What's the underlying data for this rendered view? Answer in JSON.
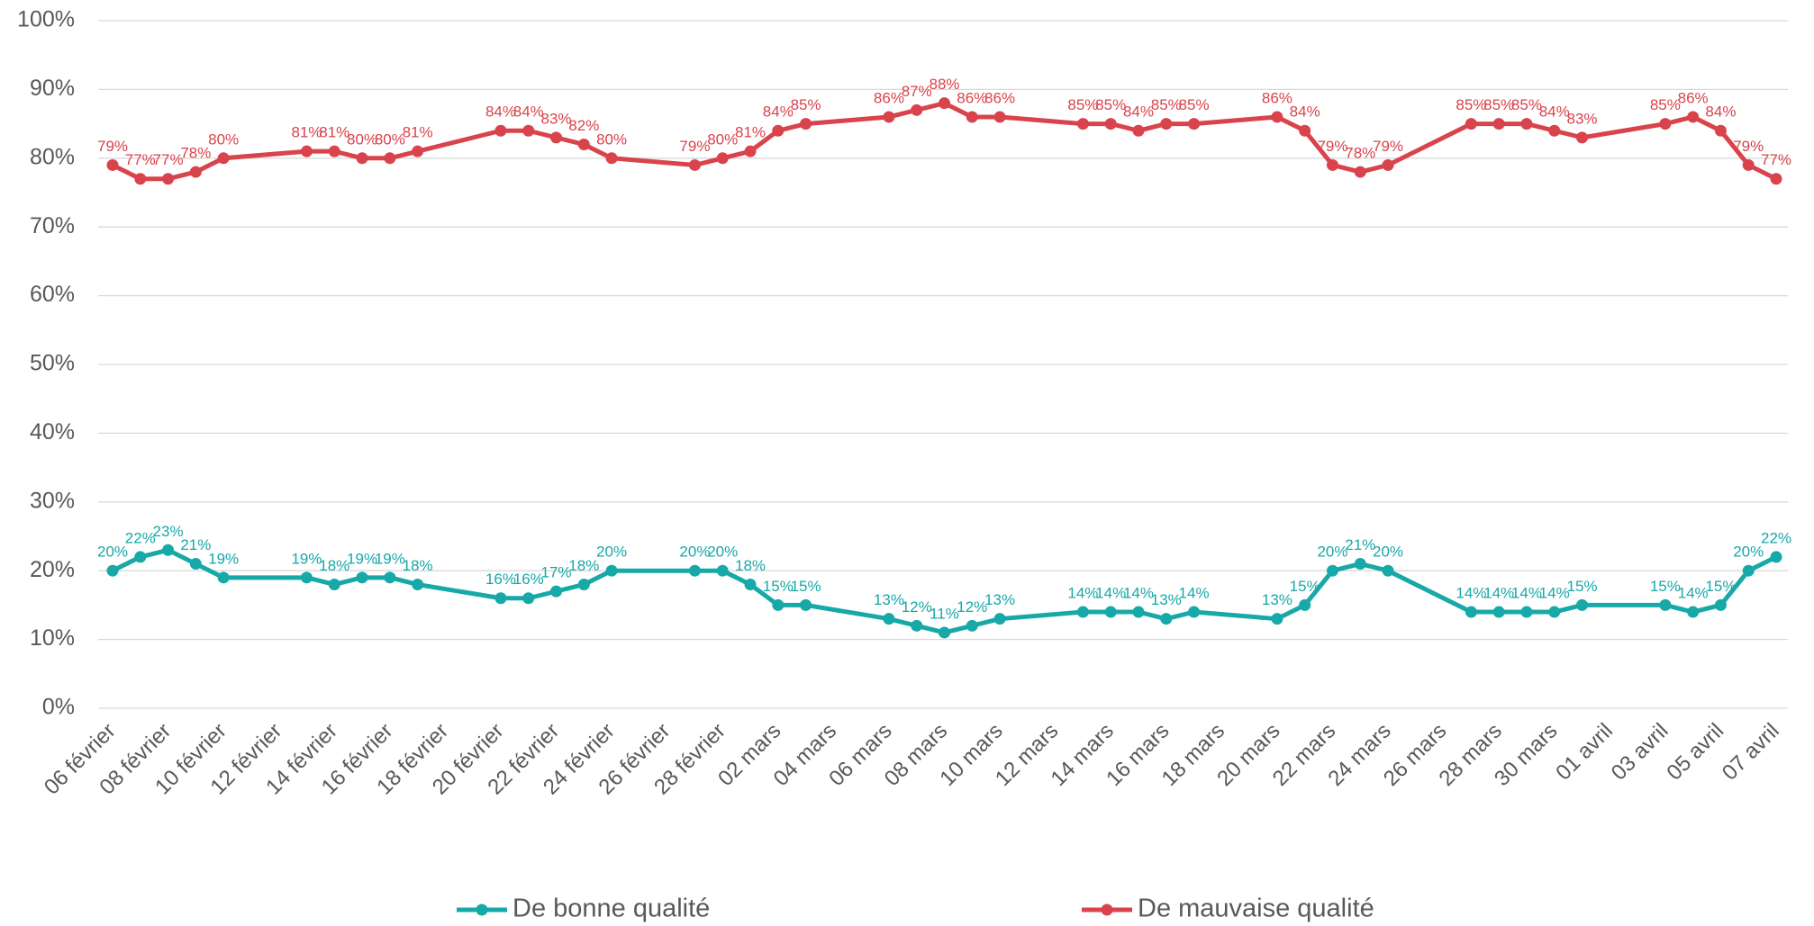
{
  "chart_data": {
    "type": "line",
    "categories": [
      "06 février",
      null,
      "08 février",
      null,
      "10 février",
      null,
      "12 février",
      null,
      "14 février",
      null,
      "16 février",
      null,
      "18 février",
      null,
      "20 février",
      null,
      "22 février",
      null,
      "24 février",
      null,
      "26 février",
      null,
      "28 février",
      null,
      "02 mars",
      null,
      "04 mars",
      null,
      "06 mars",
      null,
      "08 mars",
      null,
      "10 mars",
      null,
      "12 mars",
      null,
      "14 mars",
      null,
      "16 mars",
      null,
      "18 mars",
      null,
      "20 mars",
      null,
      "22 mars",
      null,
      "24 mars",
      null,
      "26 mars",
      null,
      "28 mars",
      null,
      "30 mars",
      null,
      "01 avril",
      null,
      "03 avril",
      null,
      "05 avril",
      null,
      "07 avril"
    ],
    "series": [
      {
        "name": "De bonne qualité",
        "color": "#17a8a8",
        "values": [
          20,
          22,
          23,
          21,
          19,
          null,
          null,
          19,
          18,
          19,
          19,
          18,
          null,
          null,
          16,
          16,
          17,
          18,
          20,
          null,
          null,
          20,
          20,
          18,
          15,
          15,
          null,
          null,
          13,
          12,
          11,
          12,
          13,
          null,
          null,
          14,
          14,
          14,
          13,
          14,
          null,
          null,
          13,
          15,
          20,
          21,
          20,
          null,
          null,
          14,
          14,
          14,
          14,
          15,
          null,
          null,
          15,
          14,
          15,
          20,
          22
        ],
        "value_labels": [
          "20%",
          "22%",
          "23%",
          "21%",
          "19%",
          null,
          null,
          "19%",
          "18%",
          "19%",
          "19%",
          "18%",
          null,
          null,
          "16%",
          "16%",
          "17%",
          "18%",
          "20%",
          null,
          null,
          "20%",
          "20%",
          "18%",
          "15%",
          "15%",
          null,
          null,
          "13%",
          "12%",
          "11%",
          "12%",
          "13%",
          null,
          null,
          "14%",
          "14%",
          "14%",
          "13%",
          "14%",
          null,
          null,
          "13%",
          "15%",
          "20%",
          "21%",
          "20%",
          null,
          null,
          "14%",
          "14%",
          "14%",
          "14%",
          "15%",
          null,
          null,
          "15%",
          "14%",
          "15%",
          "20%",
          "22%"
        ]
      },
      {
        "name": "De mauvaise qualité",
        "color": "#d9434b",
        "values": [
          79,
          77,
          77,
          78,
          80,
          null,
          null,
          81,
          81,
          80,
          80,
          81,
          null,
          null,
          84,
          84,
          83,
          82,
          80,
          null,
          null,
          79,
          80,
          81,
          84,
          85,
          null,
          null,
          86,
          87,
          88,
          86,
          86,
          null,
          null,
          85,
          85,
          84,
          85,
          85,
          null,
          null,
          86,
          84,
          79,
          78,
          79,
          null,
          null,
          85,
          85,
          85,
          84,
          83,
          null,
          null,
          85,
          86,
          84,
          79,
          77
        ],
        "value_labels": [
          "79%",
          "77%",
          "77%",
          "78%",
          "80%",
          null,
          null,
          "81%",
          "81%",
          "80%",
          "80%",
          "81%",
          null,
          null,
          "84%",
          "84%",
          "83%",
          "82%",
          "80%",
          null,
          null,
          "79%",
          "80%",
          "81%",
          "84%",
          "85%",
          null,
          null,
          "86%",
          "87%",
          "88%",
          "86%",
          "86%",
          null,
          null,
          "85%",
          "85%",
          "84%",
          "85%",
          "85%",
          null,
          null,
          "86%",
          "84%",
          "79%",
          "78%",
          "79%",
          null,
          null,
          "85%",
          "85%",
          "85%",
          "84%",
          "83%",
          null,
          null,
          "85%",
          "86%",
          "84%",
          "79%",
          "77%"
        ]
      }
    ],
    "ylim": [
      0,
      100
    ],
    "yticks": [
      {
        "value": 0,
        "label": "0%"
      },
      {
        "value": 10,
        "label": "10%"
      },
      {
        "value": 20,
        "label": "20%"
      },
      {
        "value": 30,
        "label": "30%"
      },
      {
        "value": 40,
        "label": "40%"
      },
      {
        "value": 50,
        "label": "50%"
      },
      {
        "value": 60,
        "label": "60%"
      },
      {
        "value": 70,
        "label": "70%"
      },
      {
        "value": 80,
        "label": "80%"
      },
      {
        "value": 90,
        "label": "90%"
      },
      {
        "value": 100,
        "label": "100%"
      }
    ],
    "grid": true,
    "connect_gaps": true,
    "legend": "bottom"
  }
}
